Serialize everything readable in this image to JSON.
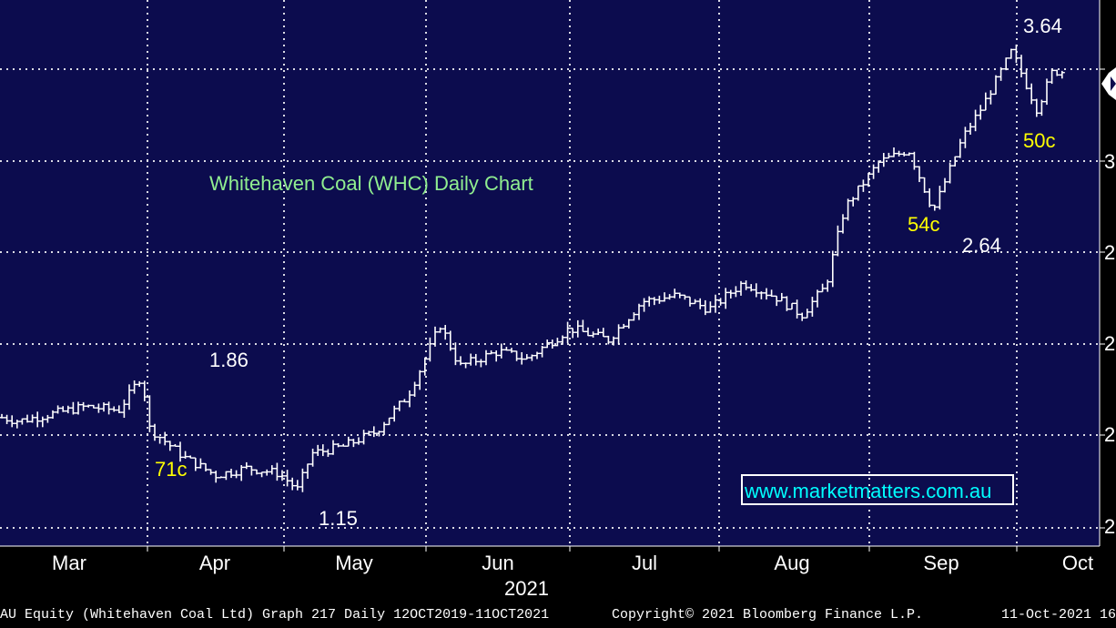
{
  "chart_data": {
    "type": "ohlc",
    "title": "Whitehaven Coal (WHC) Daily Chart",
    "watermark": "www.marketmatters.com.au",
    "year_label": "2021",
    "x_ticks": [
      "Mar",
      "Apr",
      "May",
      "Jun",
      "Jul",
      "Aug",
      "Sep",
      "Oct"
    ],
    "ylim": [
      1.0,
      3.85
    ],
    "grid": true,
    "annotations": [
      {
        "text": "3.64",
        "color": "#ffffff"
      },
      {
        "text": "1.86",
        "color": "#ffffff"
      },
      {
        "text": "1.15",
        "color": "#ffffff"
      },
      {
        "text": "2.64",
        "color": "#ffffff"
      },
      {
        "text": "71c",
        "color": "#ffff00"
      },
      {
        "text": "54c",
        "color": "#ffff00"
      },
      {
        "text": "50c",
        "color": "#ffff00"
      }
    ],
    "close_path": [
      [
        "2021-02-19",
        1.52
      ],
      [
        "2021-02-26",
        1.62
      ],
      [
        "2021-03-05",
        1.58
      ],
      [
        "2021-03-12",
        1.62
      ],
      [
        "2021-03-19",
        1.66
      ],
      [
        "2021-03-26",
        1.64
      ],
      [
        "2021-03-31",
        1.84
      ],
      [
        "2021-04-01",
        1.55
      ],
      [
        "2021-04-09",
        1.38
      ],
      [
        "2021-04-16",
        1.28
      ],
      [
        "2021-04-23",
        1.32
      ],
      [
        "2021-04-30",
        1.29
      ],
      [
        "2021-05-04",
        1.2
      ],
      [
        "2021-05-07",
        1.4
      ],
      [
        "2021-05-14",
        1.44
      ],
      [
        "2021-05-21",
        1.52
      ],
      [
        "2021-05-28",
        1.72
      ],
      [
        "2021-06-04",
        2.1
      ],
      [
        "2021-06-08",
        1.88
      ],
      [
        "2021-06-16",
        1.96
      ],
      [
        "2021-06-22",
        1.92
      ],
      [
        "2021-07-01",
        2.08
      ],
      [
        "2021-07-09",
        2.02
      ],
      [
        "2021-07-16",
        2.22
      ],
      [
        "2021-07-23",
        2.25
      ],
      [
        "2021-07-30",
        2.18
      ],
      [
        "2021-08-06",
        2.32
      ],
      [
        "2021-08-13",
        2.24
      ],
      [
        "2021-08-18",
        2.15
      ],
      [
        "2021-08-23",
        2.3
      ],
      [
        "2021-08-27",
        2.72
      ],
      [
        "2021-09-03",
        2.98
      ],
      [
        "2021-09-09",
        3.05
      ],
      [
        "2021-09-14",
        2.7
      ],
      [
        "2021-09-20",
        3.12
      ],
      [
        "2021-09-24",
        3.3
      ],
      [
        "2021-09-30",
        3.62
      ],
      [
        "2021-10-05",
        3.28
      ],
      [
        "2021-10-08",
        3.5
      ]
    ],
    "right_axis_labels": [
      "3",
      "2",
      "2",
      "2",
      "2"
    ]
  },
  "footer": {
    "left": "AU Equity (Whitehaven Coal Ltd) Graph 217  Daily 12OCT2019-11OCT2021",
    "center": "Copyright© 2021 Bloomberg Finance L.P.",
    "right": "11-Oct-2021 16:"
  },
  "colors": {
    "plot_bg": "#0c0c4e",
    "price": "#ffffff",
    "grid": "#ffffff",
    "title": "#90ee90",
    "watermark": "#00ffff",
    "highlight": "#ffff00"
  }
}
